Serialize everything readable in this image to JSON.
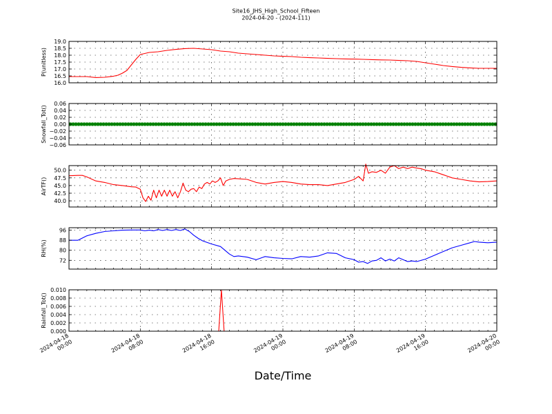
{
  "title": "Site16_JHS_High_School_Fifteen",
  "subtitle": "2024-04-20 - (2024-111)",
  "xlabel": "Date/Time",
  "x_ticks": [
    {
      "t": 0,
      "line1": "2024-04-18",
      "line2": "00:00"
    },
    {
      "t": 8,
      "line1": "2024-04-18",
      "line2": "08:00"
    },
    {
      "t": 16,
      "line1": "2024-04-18",
      "line2": "16:00"
    },
    {
      "t": 24,
      "line1": "2024-04-19",
      "line2": "00:00"
    },
    {
      "t": 32,
      "line1": "2024-04-19",
      "line2": "08:00"
    },
    {
      "t": 40,
      "line1": "2024-04-19",
      "line2": "16:00"
    },
    {
      "t": 48,
      "line1": "2024-04-20",
      "line2": "00:00"
    }
  ],
  "chart_data": [
    {
      "type": "line",
      "ylabel": "P(unitless)",
      "ylim": [
        16.0,
        19.0
      ],
      "yticks": [
        "16.0",
        "16.5",
        "17.0",
        "17.5",
        "18.0",
        "18.5",
        "19.0"
      ],
      "grid": true,
      "series": [
        {
          "color": "#ff0000",
          "x": [
            0,
            1,
            2,
            3,
            4,
            5,
            5.5,
            6,
            6.5,
            7,
            7.5,
            8,
            9,
            10,
            11,
            12,
            13,
            14,
            15,
            16,
            17,
            18,
            19,
            20,
            21,
            22,
            23,
            24,
            25,
            26,
            27,
            28,
            29,
            30,
            31,
            32,
            33,
            34,
            35,
            36,
            37,
            38,
            39,
            40,
            41,
            42,
            43,
            44,
            45,
            46,
            47,
            48
          ],
          "values": [
            16.45,
            16.45,
            16.45,
            16.38,
            16.4,
            16.48,
            16.55,
            16.7,
            16.9,
            17.3,
            17.7,
            18.05,
            18.2,
            18.25,
            18.35,
            18.42,
            18.48,
            18.5,
            18.45,
            18.4,
            18.3,
            18.25,
            18.15,
            18.1,
            18.05,
            18.0,
            17.95,
            17.92,
            17.9,
            17.85,
            17.82,
            17.8,
            17.77,
            17.75,
            17.73,
            17.72,
            17.7,
            17.68,
            17.66,
            17.65,
            17.62,
            17.6,
            17.55,
            17.45,
            17.35,
            17.25,
            17.18,
            17.12,
            17.08,
            17.05,
            17.05,
            17.05
          ]
        }
      ]
    },
    {
      "type": "line",
      "ylabel": "Snowfall_Tot()",
      "ylim": [
        -0.06,
        0.06
      ],
      "yticks": [
        "−0.06",
        "−0.04",
        "−0.02",
        "0.00",
        "0.02",
        "0.04",
        "0.06"
      ],
      "grid": true,
      "series": [
        {
          "color": "#008000",
          "markers": true,
          "x": [
            0,
            48
          ],
          "values": [
            0.0,
            0.0
          ]
        }
      ]
    },
    {
      "type": "line",
      "ylabel": "AirTF()",
      "ylim": [
        38.0,
        51.5
      ],
      "yticks": [
        "40.0",
        "42.5",
        "45.0",
        "47.5",
        "50.0"
      ],
      "grid": true,
      "series": [
        {
          "color": "#ff0000",
          "x": [
            0,
            1,
            1.5,
            2,
            3,
            4,
            5,
            6,
            7,
            7.5,
            8,
            8.3,
            8.6,
            8.9,
            9.2,
            9.5,
            9.8,
            10.1,
            10.4,
            10.7,
            11,
            11.3,
            11.6,
            11.9,
            12.2,
            12.5,
            12.8,
            13.1,
            13.4,
            13.7,
            14,
            14.3,
            14.6,
            14.9,
            15.2,
            15.5,
            15.8,
            16.1,
            16.4,
            16.7,
            17,
            17.3,
            17.6,
            18,
            18.5,
            19,
            20,
            21,
            22,
            23,
            24,
            25,
            26,
            27,
            28,
            29,
            30,
            31,
            32,
            32.5,
            33,
            33.3,
            33.6,
            34,
            34.5,
            35,
            35.5,
            36,
            36.5,
            37,
            37.5,
            38,
            38.5,
            39,
            39.5,
            40,
            41,
            42,
            43,
            44,
            45,
            46,
            47,
            48
          ],
          "values": [
            48.2,
            48.3,
            48.3,
            47.8,
            46.5,
            46.0,
            45.3,
            45.0,
            44.6,
            44.5,
            43.8,
            41.0,
            39.8,
            41.5,
            40.2,
            43.5,
            41.0,
            43.5,
            41.5,
            43.5,
            41.5,
            43.5,
            41.5,
            43.0,
            41.0,
            43.0,
            45.8,
            43.5,
            43.0,
            43.8,
            44.0,
            43.0,
            44.5,
            44.0,
            45.5,
            46.0,
            45.5,
            46.5,
            46.0,
            46.5,
            47.5,
            45.0,
            46.5,
            47.0,
            47.3,
            47.2,
            47.0,
            46.0,
            45.5,
            46.0,
            46.3,
            46.0,
            45.5,
            45.3,
            45.3,
            45.0,
            45.5,
            46.0,
            47.0,
            48.0,
            46.5,
            52.0,
            49.0,
            49.5,
            49.3,
            50.0,
            49.0,
            51.0,
            51.5,
            50.5,
            51.0,
            50.5,
            51.0,
            50.7,
            50.5,
            50.0,
            49.5,
            48.5,
            47.5,
            47.0,
            46.5,
            46.2,
            46.3,
            46.5
          ]
        }
      ]
    },
    {
      "type": "line",
      "ylabel": "RH(%)",
      "ylim": [
        65,
        98
      ],
      "yticks": [
        "72",
        "80",
        "88",
        "96"
      ],
      "grid": true,
      "series": [
        {
          "color": "#0000ff",
          "x": [
            0,
            1,
            2,
            3,
            4,
            5,
            6,
            7,
            8,
            8.5,
            9,
            9.5,
            10,
            10.5,
            11,
            11.5,
            12,
            12.5,
            13,
            13.5,
            14,
            14.5,
            15,
            16,
            17,
            17.5,
            18,
            18.5,
            19,
            20,
            21,
            22,
            23,
            24,
            25,
            26,
            27,
            28,
            29,
            30,
            31,
            32,
            32.5,
            33,
            33.5,
            34,
            34.5,
            35,
            35.5,
            36,
            36.5,
            37,
            37.5,
            38,
            38.5,
            39,
            40,
            41,
            42,
            43,
            44,
            45,
            45.5,
            46,
            47,
            48
          ],
          "values": [
            88,
            88,
            91.5,
            93.5,
            95,
            95.5,
            96,
            96.2,
            96.2,
            95.5,
            96,
            95.5,
            96.5,
            95.8,
            96.5,
            95.8,
            96.5,
            95.8,
            97,
            95,
            92,
            89.5,
            87.5,
            85,
            83,
            80,
            77,
            75,
            75.5,
            74.5,
            72.5,
            75,
            74,
            73.5,
            73.2,
            75,
            74.5,
            75.5,
            78,
            77.5,
            74,
            72.5,
            70.5,
            71,
            69.5,
            71.5,
            72,
            74,
            71.5,
            73,
            71.5,
            74,
            72.5,
            71,
            71.5,
            71,
            73,
            76,
            79,
            82,
            84,
            86,
            87,
            86.5,
            86,
            86.5
          ]
        }
      ]
    },
    {
      "type": "line",
      "ylabel": "Rainfall_Tot()",
      "ylim": [
        0.0,
        0.01
      ],
      "yticks": [
        "0.000",
        "0.002",
        "0.004",
        "0.006",
        "0.008",
        "0.010"
      ],
      "grid": true,
      "series": [
        {
          "color": "#ff0000",
          "x": [
            0,
            16.8,
            17.1,
            17.4,
            48
          ],
          "values": [
            0,
            0,
            0.01,
            0,
            0
          ]
        }
      ]
    }
  ]
}
